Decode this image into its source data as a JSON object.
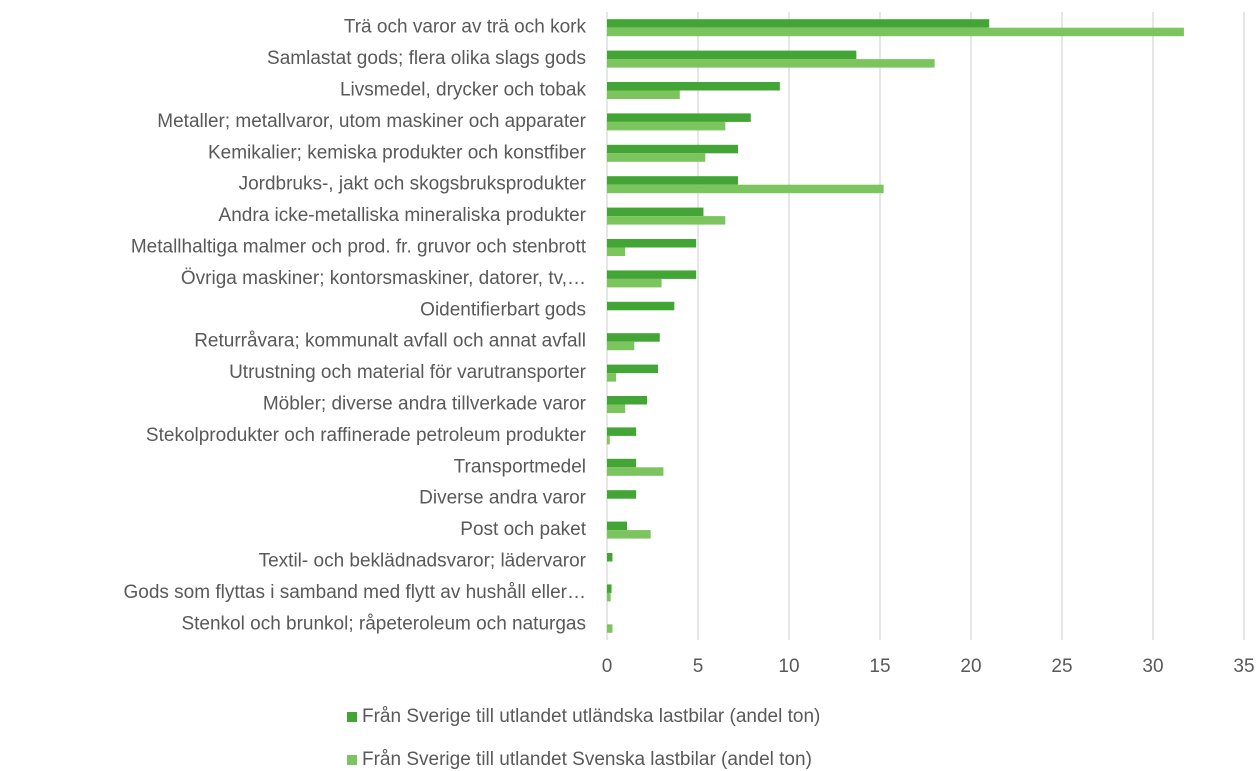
{
  "chart_data": {
    "type": "barh",
    "categories": [
      "Trä och varor av trä och kork",
      "Samlastat gods; flera olika slags gods",
      "Livsmedel, drycker och tobak",
      "Metaller; metallvaror, utom maskiner och apparater",
      "Kemikalier; kemiska produkter och konstfiber",
      "Jordbruks-, jakt och skogsbruksprodukter",
      "Andra icke-metalliska mineraliska produkter",
      "Metallhaltiga malmer och prod. fr. gruvor och stenbrott",
      "Övriga maskiner; kontorsmaskiner, datorer, tv,…",
      "Oidentifierbart gods",
      "Returråvara; kommunalt avfall och annat avfall",
      "Utrustning och material för varutransporter",
      "Möbler; diverse andra tillverkade varor",
      "Stekolprodukter och raffinerade petroleum produkter",
      "Transportmedel",
      "Diverse andra varor",
      "Post och paket",
      "Textil- och beklädnadsvaror; lädervaror",
      "Gods som flyttas i samband med flytt av hushåll eller…",
      "Stenkol och brunkol; råpeteroleum och naturgas"
    ],
    "series": [
      {
        "name": "Från Sverige till utlandet utländska lastbilar (andel ton)",
        "color": "#43a535",
        "values": [
          21.0,
          13.7,
          9.5,
          7.9,
          7.2,
          7.2,
          5.3,
          4.9,
          4.9,
          3.7,
          2.9,
          2.8,
          2.2,
          1.6,
          1.6,
          1.6,
          1.1,
          0.3,
          0.25,
          0
        ]
      },
      {
        "name": "Från Sverige till utlandet Svenska lastbilar (andel ton)",
        "color": "#7cc45e",
        "values": [
          31.7,
          18.0,
          4.0,
          6.5,
          5.4,
          15.2,
          6.5,
          1.0,
          3.0,
          0,
          1.5,
          0.5,
          1.0,
          0.15,
          3.1,
          0,
          2.4,
          0,
          0.2,
          0.3
        ]
      }
    ],
    "xlim": [
      0,
      35
    ],
    "xticks": [
      0,
      5,
      10,
      15,
      20,
      25,
      30,
      35
    ],
    "grid": true,
    "legend": "bottom"
  }
}
